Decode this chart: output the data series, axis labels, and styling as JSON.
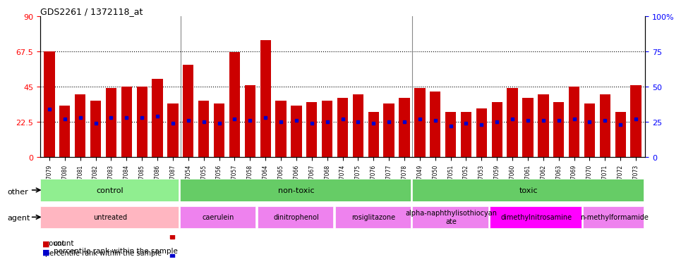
{
  "title": "GDS2261 / 1372118_at",
  "bar_labels": [
    "GSM127079",
    "GSM127080",
    "GSM127081",
    "GSM127082",
    "GSM127083",
    "GSM127084",
    "GSM127085",
    "GSM127086",
    "GSM127087",
    "GSM127054",
    "GSM127055",
    "GSM127056",
    "GSM127057",
    "GSM127058",
    "GSM127064",
    "GSM127065",
    "GSM127066",
    "GSM127067",
    "GSM127068",
    "GSM127074",
    "GSM127075",
    "GSM127076",
    "GSM127077",
    "GSM127078",
    "GSM127049",
    "GSM127050",
    "GSM127051",
    "GSM127052",
    "GSM127053",
    "GSM127059",
    "GSM127060",
    "GSM127061",
    "GSM127062",
    "GSM127063",
    "GSM127069",
    "GSM127070",
    "GSM127071",
    "GSM127072",
    "GSM127073"
  ],
  "bar_heights": [
    67.5,
    33,
    40,
    36,
    44,
    45,
    45,
    50,
    34,
    59,
    36,
    34,
    67,
    46,
    75,
    36,
    33,
    35,
    36,
    38,
    40,
    29,
    34,
    38,
    44,
    42,
    29,
    29,
    31,
    35,
    44,
    38,
    40,
    35,
    45,
    34,
    40,
    29,
    46
  ],
  "blue_dot_values": [
    34,
    27,
    28,
    24,
    28,
    28,
    28,
    29,
    24,
    26,
    25,
    24,
    27,
    26,
    28,
    25,
    26,
    24,
    25,
    27,
    25,
    24,
    25,
    25,
    27,
    26,
    22,
    24,
    23,
    25,
    27,
    26,
    26,
    26,
    27,
    25,
    26,
    23,
    27
  ],
  "bar_color": "#CC0000",
  "dot_color": "#0000CC",
  "ylim_left": [
    0,
    90
  ],
  "ylim_right": [
    0,
    100
  ],
  "yticks_left": [
    0,
    22.5,
    45,
    67.5,
    90
  ],
  "yticks_left_labels": [
    "0",
    "22.5",
    "45",
    "67.5",
    "90"
  ],
  "yticks_right": [
    0,
    25,
    50,
    75,
    100
  ],
  "yticks_right_labels": [
    "0",
    "25",
    "50",
    "75",
    "100%"
  ],
  "hlines": [
    22.5,
    45,
    67.5
  ],
  "groups_other": [
    {
      "label": "control",
      "start": 0,
      "end": 9,
      "color": "#90EE90"
    },
    {
      "label": "non-toxic",
      "start": 9,
      "end": 24,
      "color": "#66CC66"
    },
    {
      "label": "toxic",
      "start": 24,
      "end": 39,
      "color": "#66CC66"
    }
  ],
  "groups_agent": [
    {
      "label": "untreated",
      "start": 0,
      "end": 9,
      "color": "#FFB6C1"
    },
    {
      "label": "caerulein",
      "start": 9,
      "end": 14,
      "color": "#EE82EE"
    },
    {
      "label": "dinitrophenol",
      "start": 14,
      "end": 19,
      "color": "#EE82EE"
    },
    {
      "label": "rosiglitazone",
      "start": 19,
      "end": 24,
      "color": "#EE82EE"
    },
    {
      "label": "alpha-naphthylisothiocyan\nate",
      "start": 24,
      "end": 29,
      "color": "#EE82EE"
    },
    {
      "label": "dimethylnitrosamine",
      "start": 29,
      "end": 35,
      "color": "#FF00FF"
    },
    {
      "label": "n-methylformamide",
      "start": 35,
      "end": 39,
      "color": "#EE82EE"
    }
  ],
  "legend_count_color": "#CC0000",
  "legend_dot_color": "#0000CC",
  "bg_color": "#E8E8E8",
  "plot_bg_color": "#FFFFFF"
}
